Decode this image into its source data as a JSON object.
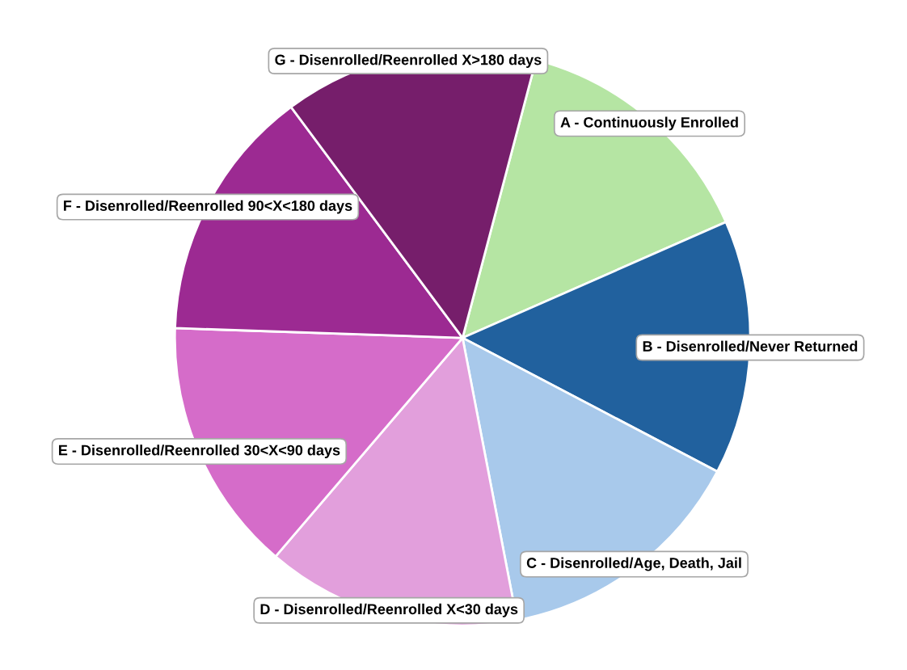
{
  "chart_data": {
    "type": "pie",
    "categories": [
      "A - Continuously Enrolled",
      "B - Disenrolled/Never Returned",
      "C - Disenrolled/Age, Death, Jail",
      "D - Disenrolled/Reenrolled X<30 days",
      "E - Disenrolled/Reenrolled 30<X<90 days",
      "F - Disenrolled/Reenrolled 90<X<180 days",
      "G - Disenrolled/Reenrolled X>180 days"
    ],
    "values": [
      14.29,
      14.29,
      14.28,
      14.29,
      14.28,
      14.29,
      14.28
    ],
    "colors": [
      "#b5e5a3",
      "#21619e",
      "#a8c9eb",
      "#e29fdc",
      "#d56cc9",
      "#9c2a92",
      "#761e6b"
    ],
    "legend": false
  }
}
